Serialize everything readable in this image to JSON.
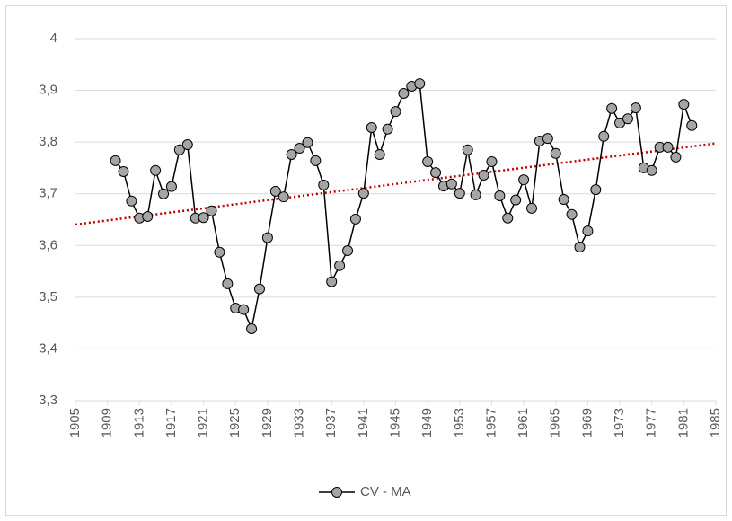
{
  "chart_data": {
    "type": "line",
    "x": [
      1910,
      1911,
      1912,
      1913,
      1914,
      1915,
      1916,
      1917,
      1918,
      1919,
      1920,
      1921,
      1922,
      1923,
      1924,
      1925,
      1926,
      1927,
      1928,
      1929,
      1930,
      1931,
      1932,
      1933,
      1934,
      1935,
      1936,
      1937,
      1938,
      1939,
      1940,
      1941,
      1942,
      1943,
      1944,
      1945,
      1946,
      1947,
      1948,
      1949,
      1950,
      1951,
      1952,
      1953,
      1954,
      1955,
      1956,
      1957,
      1958,
      1959,
      1960,
      1961,
      1962,
      1963,
      1964,
      1965,
      1966,
      1967,
      1968,
      1969,
      1970,
      1971,
      1972,
      1973,
      1974,
      1975,
      1976,
      1977,
      1978,
      1979,
      1980,
      1981,
      1982
    ],
    "series": [
      {
        "name": "CV - MA",
        "color": "#000000",
        "marker_fill": "#a5a5a5",
        "values": [
          3.764,
          3.743,
          3.686,
          3.653,
          3.656,
          3.745,
          3.7,
          3.714,
          3.785,
          3.795,
          3.653,
          3.654,
          3.667,
          3.587,
          3.526,
          3.479,
          3.476,
          3.439,
          3.516,
          3.615,
          3.705,
          3.694,
          3.776,
          3.788,
          3.799,
          3.764,
          3.717,
          3.53,
          3.561,
          3.59,
          3.651,
          3.701,
          3.828,
          3.776,
          3.825,
          3.859,
          3.894,
          3.908,
          3.913,
          3.762,
          3.741,
          3.715,
          3.719,
          3.701,
          3.785,
          3.698,
          3.736,
          3.762,
          3.696,
          3.653,
          3.688,
          3.727,
          3.672,
          3.802,
          3.807,
          3.778,
          3.689,
          3.66,
          3.597,
          3.628,
          3.708,
          3.811,
          3.865,
          3.837,
          3.845,
          3.866,
          3.75,
          3.745,
          3.79,
          3.79,
          3.771,
          3.873,
          3.832
        ]
      }
    ],
    "trendline": {
      "type": "linear",
      "color": "#c00000"
    },
    "xlim": [
      1905,
      1985
    ],
    "xticks": [
      1905,
      1909,
      1913,
      1917,
      1921,
      1925,
      1929,
      1933,
      1937,
      1941,
      1945,
      1949,
      1953,
      1957,
      1961,
      1965,
      1969,
      1973,
      1977,
      1981,
      1985
    ],
    "ylim": [
      3.3,
      4
    ],
    "yticks": [
      {
        "value": 3.3,
        "label": "3,3"
      },
      {
        "value": 3.4,
        "label": "3,4"
      },
      {
        "value": 3.5,
        "label": "3,5"
      },
      {
        "value": 3.6,
        "label": "3,6"
      },
      {
        "value": 3.7,
        "label": "3,7"
      },
      {
        "value": 3.8,
        "label": "3,8"
      },
      {
        "value": 3.9,
        "label": "3,9"
      },
      4
    ],
    "grid": true,
    "legend": "bottom"
  }
}
